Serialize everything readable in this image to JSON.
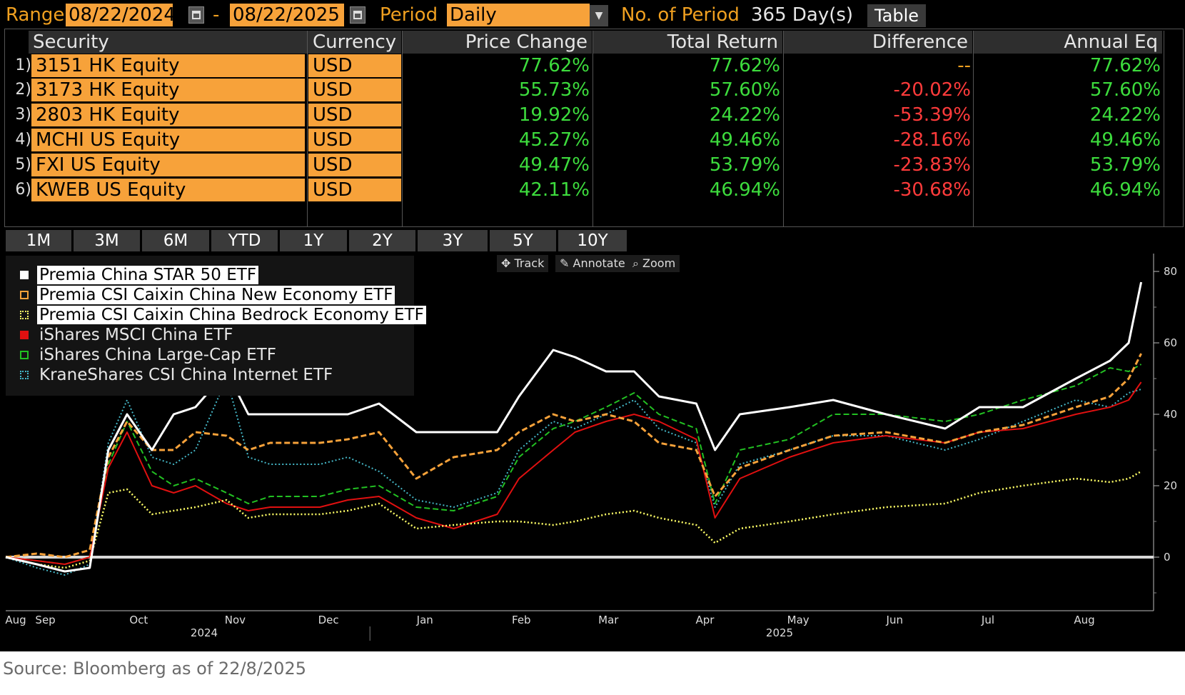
{
  "toolbar": {
    "range_label": "Range",
    "start_date": "08/22/2024",
    "range_sep": "-",
    "end_date": "08/22/2025",
    "period_label": "Period",
    "period_value": "Daily",
    "num_period_label": "No. of Period",
    "num_period_value": "365 Day(s)",
    "table_button": "Table"
  },
  "table": {
    "headers": [
      "Security",
      "Currency",
      "Price Change",
      "Total Return",
      "Difference",
      "Annual Eq"
    ],
    "rows": [
      {
        "num": "1)",
        "security": "3151 HK Equity",
        "currency": "USD",
        "price_change": "77.62%",
        "total_return": "77.62%",
        "difference": "--",
        "annual_eq": "77.62%"
      },
      {
        "num": "2)",
        "security": "3173 HK Equity",
        "currency": "USD",
        "price_change": "55.73%",
        "total_return": "57.60%",
        "difference": "-20.02%",
        "annual_eq": "57.60%"
      },
      {
        "num": "3)",
        "security": "2803 HK Equity",
        "currency": "USD",
        "price_change": "19.92%",
        "total_return": "24.22%",
        "difference": "-53.39%",
        "annual_eq": "24.22%"
      },
      {
        "num": "4)",
        "security": "MCHI US Equity",
        "currency": "USD",
        "price_change": "45.27%",
        "total_return": "49.46%",
        "difference": "-28.16%",
        "annual_eq": "49.46%"
      },
      {
        "num": "5)",
        "security": "FXI US Equity",
        "currency": "USD",
        "price_change": "49.47%",
        "total_return": "53.79%",
        "difference": "-23.83%",
        "annual_eq": "53.79%"
      },
      {
        "num": "6)",
        "security": "KWEB US Equity",
        "currency": "USD",
        "price_change": "42.11%",
        "total_return": "46.94%",
        "difference": "-30.68%",
        "annual_eq": "46.94%"
      }
    ]
  },
  "period_buttons": [
    "1M",
    "3M",
    "6M",
    "YTD",
    "1Y",
    "2Y",
    "3Y",
    "5Y",
    "10Y"
  ],
  "chart_tools": {
    "track": "Track",
    "annotate": "Annotate",
    "zoom": "Zoom"
  },
  "colors": {
    "accent": "#f0a020",
    "field": "#f7a23a",
    "positive": "#3ddc3d",
    "negative": "#ff3b3b"
  },
  "chart_data": {
    "type": "line",
    "title": "",
    "xlabel": "",
    "ylabel": "",
    "ylim": [
      -15,
      85
    ],
    "yticks": [
      0,
      20,
      40,
      60,
      80
    ],
    "grid": false,
    "legend_position": "top-left",
    "x_tick_labels": [
      "Aug",
      "Sep",
      "Oct",
      "Nov",
      "Dec",
      "Jan",
      "Feb",
      "Mar",
      "Apr",
      "May",
      "Jun",
      "Jul",
      "Aug"
    ],
    "x_tick_dates": [
      "2024-08-22",
      "2024-09-01",
      "2024-10-01",
      "2024-11-01",
      "2024-12-01",
      "2025-01-01",
      "2025-02-01",
      "2025-03-01",
      "2025-04-01",
      "2025-05-01",
      "2025-06-01",
      "2025-07-01",
      "2025-08-01"
    ],
    "year_labels": [
      "2024",
      "2025"
    ],
    "x": [
      "2024-08-22",
      "2024-09-01",
      "2024-09-10",
      "2024-09-18",
      "2024-09-24",
      "2024-09-30",
      "2024-10-08",
      "2024-10-15",
      "2024-10-22",
      "2024-11-01",
      "2024-11-08",
      "2024-11-15",
      "2024-12-01",
      "2024-12-10",
      "2024-12-20",
      "2025-01-01",
      "2025-01-13",
      "2025-01-27",
      "2025-02-03",
      "2025-02-14",
      "2025-02-21",
      "2025-03-03",
      "2025-03-12",
      "2025-03-20",
      "2025-04-01",
      "2025-04-07",
      "2025-04-15",
      "2025-05-01",
      "2025-05-15",
      "2025-06-01",
      "2025-06-20",
      "2025-07-01",
      "2025-07-15",
      "2025-08-01",
      "2025-08-12",
      "2025-08-18",
      "2025-08-22"
    ],
    "series": [
      {
        "name": "Premia China STAR 50 ETF",
        "color": "#ffffff",
        "style": "solid",
        "width": 3,
        "values": [
          0,
          -2,
          -4,
          -3,
          30,
          40,
          30,
          40,
          42,
          52,
          40,
          40,
          40,
          40,
          43,
          35,
          35,
          35,
          45,
          58,
          56,
          52,
          52,
          45,
          43,
          30,
          40,
          42,
          44,
          40,
          36,
          42,
          42,
          50,
          55,
          60,
          77
        ]
      },
      {
        "name": "Premia CSI Caixin China New Economy ETF",
        "color": "#f7a23a",
        "style": "dashed",
        "width": 3,
        "values": [
          0,
          1,
          0,
          2,
          28,
          38,
          30,
          30,
          35,
          34,
          30,
          32,
          32,
          33,
          35,
          22,
          28,
          30,
          35,
          40,
          38,
          40,
          38,
          32,
          30,
          17,
          25,
          30,
          34,
          35,
          32,
          35,
          37,
          42,
          45,
          50,
          57
        ]
      },
      {
        "name": "Premia CSI Caixin China Bedrock Economy ETF",
        "color": "#ffff66",
        "style": "dotted",
        "width": 2.5,
        "values": [
          0,
          -2,
          -3,
          -1,
          18,
          19,
          12,
          13,
          14,
          16,
          11,
          12,
          12,
          13,
          15,
          8,
          9,
          10,
          10,
          9,
          10,
          12,
          13,
          11,
          9,
          4,
          8,
          10,
          12,
          14,
          15,
          18,
          20,
          22,
          21,
          22,
          24
        ]
      },
      {
        "name": "iShares MSCI China ETF",
        "color": "#e01010",
        "style": "solid",
        "width": 2,
        "values": [
          0,
          -1,
          -2,
          0,
          25,
          35,
          20,
          18,
          20,
          15,
          13,
          14,
          14,
          16,
          17,
          11,
          8,
          12,
          22,
          30,
          35,
          38,
          40,
          38,
          33,
          11,
          22,
          28,
          32,
          34,
          32,
          35,
          36,
          40,
          42,
          44,
          49
        ]
      },
      {
        "name": "iShares China Large-Cap ETF",
        "color": "#22c022",
        "style": "dashed",
        "width": 2,
        "values": [
          0,
          -1,
          -2,
          0,
          26,
          38,
          24,
          20,
          22,
          18,
          15,
          17,
          17,
          19,
          20,
          14,
          13,
          17,
          28,
          36,
          38,
          42,
          46,
          40,
          36,
          15,
          30,
          33,
          40,
          40,
          38,
          40,
          44,
          48,
          53,
          52,
          54
        ]
      },
      {
        "name": "KraneShares CSI China Internet ETF",
        "color": "#45b8c8",
        "style": "dotted",
        "width": 2,
        "values": [
          0,
          -3,
          -5,
          -2,
          32,
          44,
          28,
          26,
          30,
          50,
          28,
          26,
          26,
          28,
          24,
          16,
          14,
          18,
          30,
          38,
          36,
          40,
          44,
          36,
          32,
          14,
          26,
          30,
          34,
          34,
          30,
          33,
          38,
          44,
          42,
          46,
          47
        ]
      }
    ]
  },
  "source_text": "Source: Bloomberg as of 22/8/2025"
}
